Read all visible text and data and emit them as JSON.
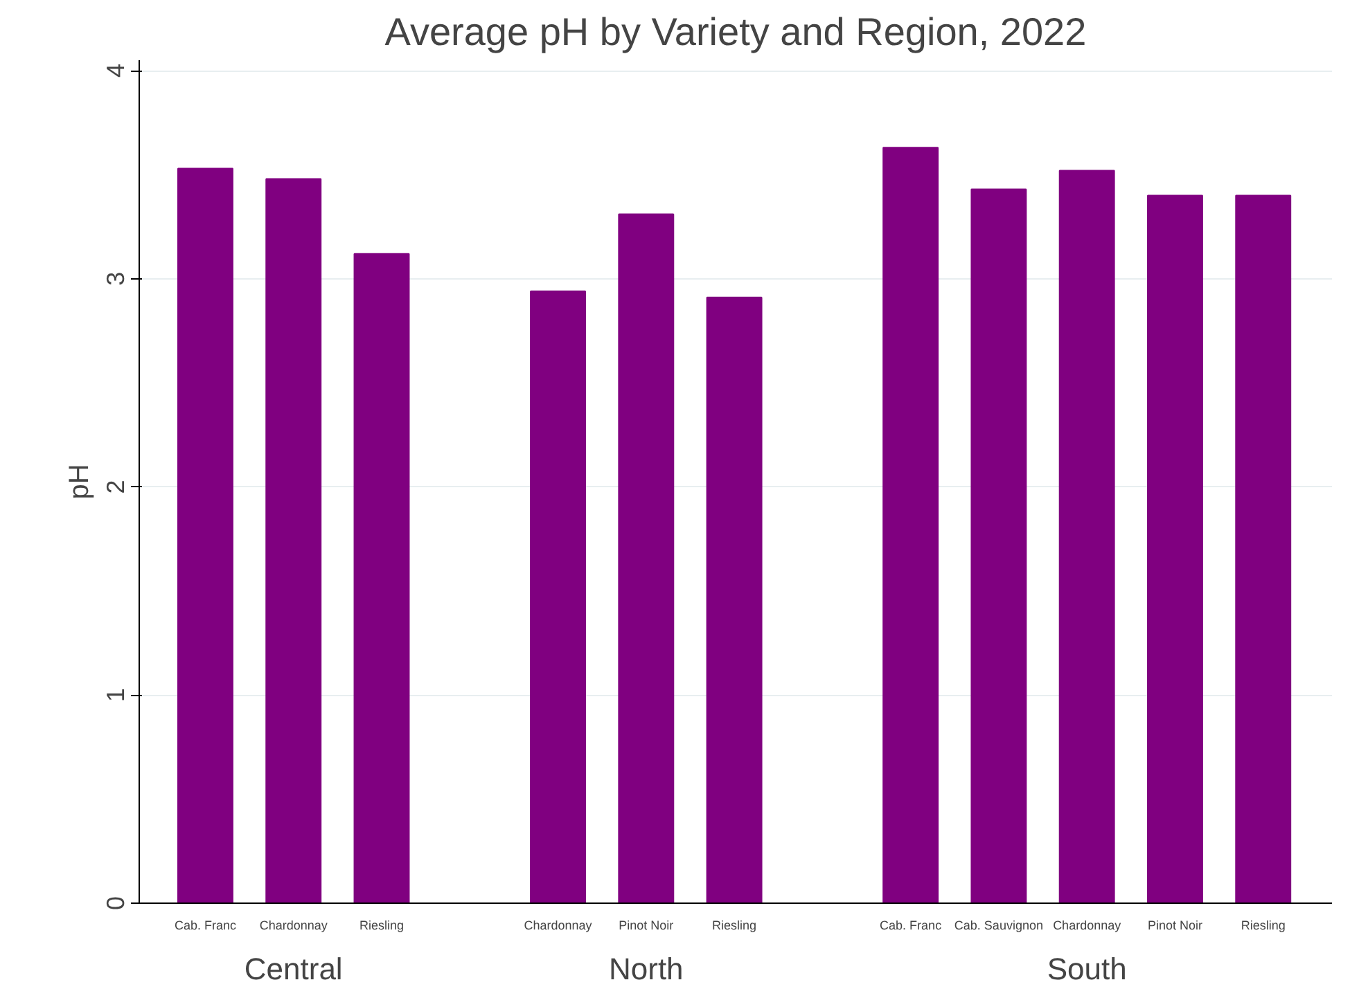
{
  "chart_data": {
    "type": "bar",
    "title": "Average pH by Variety and Region, 2022",
    "ylabel": "pH",
    "categories": [
      "Cab. Franc",
      "Chardonnay",
      "Riesling",
      null,
      "Chardonnay",
      "Pinot Noir",
      "Riesling",
      null,
      "Cab. Franc",
      "Cab. Sauvignon",
      "Chardonnay",
      "Pinot Noir",
      "Riesling"
    ],
    "values": [
      3.53,
      3.48,
      3.12,
      null,
      2.94,
      3.31,
      2.91,
      null,
      3.63,
      3.43,
      3.52,
      3.4,
      3.4
    ],
    "color": "#800080",
    "annotations": [
      "Central",
      "North",
      "South"
    ],
    "ylim": [
      0,
      4.05
    ],
    "yticks": [
      0,
      1,
      2,
      3,
      4
    ],
    "grid": "y"
  }
}
